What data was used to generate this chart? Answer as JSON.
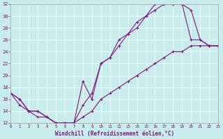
{
  "xlabel": "Windchill (Refroidissement éolien,°C)",
  "xlim": [
    0,
    23
  ],
  "ylim": [
    12,
    32
  ],
  "xticks": [
    0,
    1,
    2,
    3,
    4,
    5,
    6,
    7,
    8,
    9,
    10,
    11,
    12,
    13,
    14,
    15,
    16,
    17,
    18,
    19,
    20,
    21,
    22,
    23
  ],
  "yticks": [
    12,
    14,
    16,
    18,
    20,
    22,
    24,
    26,
    28,
    30,
    32
  ],
  "bg_color": "#c8ecec",
  "line_color": "#7b1a7b",
  "line1_x": [
    0,
    1,
    2,
    3,
    4,
    5,
    6,
    7,
    8,
    9,
    10,
    11,
    12,
    13,
    14,
    15,
    16,
    17,
    18,
    19,
    20,
    21,
    22,
    23
  ],
  "line1_y": [
    17,
    16,
    14,
    14,
    13,
    12,
    12,
    12,
    15,
    17,
    22,
    23,
    25,
    27,
    28,
    30,
    31,
    32,
    32,
    32,
    31,
    26,
    25,
    25
  ],
  "line2_x": [
    0,
    1,
    2,
    3,
    4,
    5,
    6,
    7,
    8,
    9,
    10,
    11,
    12,
    13,
    14,
    15,
    16,
    17,
    18,
    19,
    20,
    21,
    22,
    23
  ],
  "line2_y": [
    17,
    15,
    14,
    13,
    13,
    12,
    12,
    12,
    19,
    16,
    22,
    23,
    26,
    27,
    29,
    30,
    32,
    32,
    32,
    32,
    26,
    26,
    25,
    25
  ],
  "line3_x": [
    0,
    1,
    2,
    3,
    4,
    5,
    6,
    7,
    8,
    9,
    10,
    11,
    12,
    13,
    14,
    15,
    16,
    17,
    18,
    19,
    20,
    21,
    22,
    23
  ],
  "line3_y": [
    17,
    16,
    14,
    14,
    13,
    12,
    12,
    12,
    13,
    14,
    16,
    17,
    18,
    19,
    20,
    21,
    22,
    23,
    24,
    24,
    25,
    25,
    25,
    25
  ]
}
